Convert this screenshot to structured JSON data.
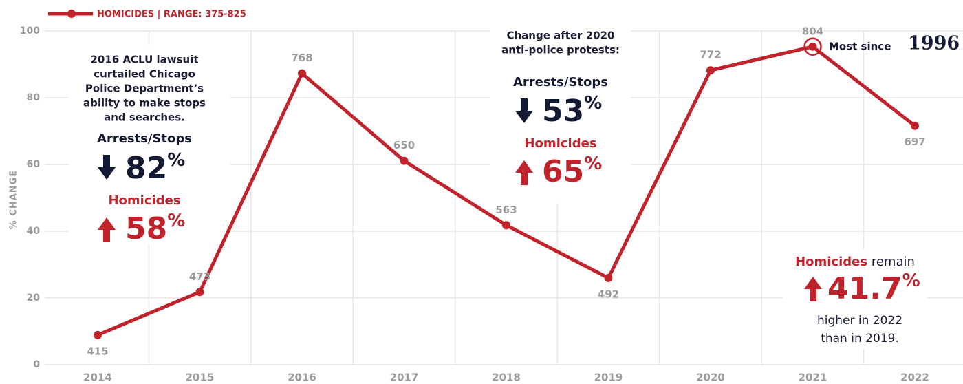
{
  "chart_data": {
    "type": "line",
    "y_label": "% CHANGE",
    "categories": [
      "2014",
      "2015",
      "2016",
      "2017",
      "2018",
      "2019",
      "2020",
      "2021",
      "2022"
    ],
    "series": [
      {
        "name": "HOMICIDES  |  RANGE: 375-825",
        "color": "#c0232c",
        "values": [
          8.9,
          21.8,
          87.3,
          61.1,
          41.8,
          26,
          88.2,
          95.3,
          71.6
        ],
        "value_labels": [
          "415",
          "473",
          "768",
          "650",
          "563",
          "492",
          "772",
          "804",
          "697"
        ]
      }
    ],
    "ylim": [
      0,
      100
    ],
    "yticks": [
      0,
      20,
      40,
      60,
      80,
      100
    ],
    "grid": true,
    "annotations": {
      "aclu": {
        "lines": [
          "2016 ACLU lawsuit",
          "curtailed Chicago",
          "Police Department’s",
          "ability to make stops",
          "and searches."
        ],
        "arrests": "Arrests/Stops",
        "arrests_change": "82",
        "arrests_unit": "%",
        "homicides": "Homicides",
        "homicides_change": "58",
        "homicides_unit": "%"
      },
      "protests": {
        "lines": [
          "Change after 2020",
          "anti-police protests:"
        ],
        "arrests": "Arrests/Stops",
        "arrests_change": "53",
        "arrests_unit": "%",
        "homicides": "Homicides",
        "homicides_change": "65",
        "homicides_unit": "%"
      },
      "peak": {
        "text": "Most since",
        "year": "1996"
      },
      "remain": {
        "homicides": "Homicides",
        "remain": " remain",
        "change": "41.7",
        "unit": "%",
        "lines": [
          "higher in 2022",
          "than in 2019."
        ]
      }
    }
  }
}
